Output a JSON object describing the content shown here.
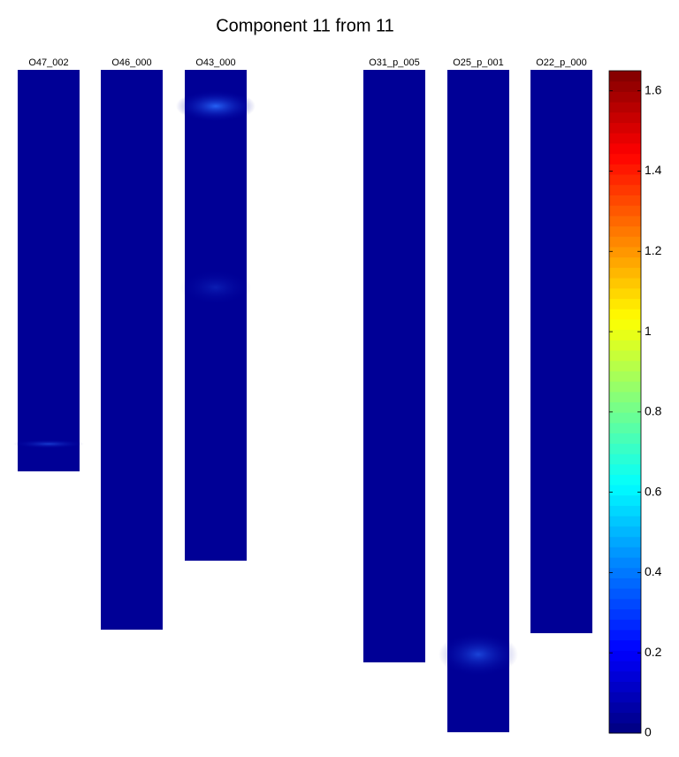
{
  "chart_data": {
    "type": "image-panels",
    "title": "Component 11 from 11",
    "panels": [
      "O47_002",
      "O46_000",
      "O43_000",
      "O31_p_005",
      "O25_p_001",
      "O22_p_000"
    ],
    "colormap": "jet",
    "ylim": [
      0,
      1.65
    ],
    "yticks": [
      0,
      0.2,
      0.4,
      0.6,
      0.8,
      1,
      1.2,
      1.4,
      1.6
    ]
  }
}
